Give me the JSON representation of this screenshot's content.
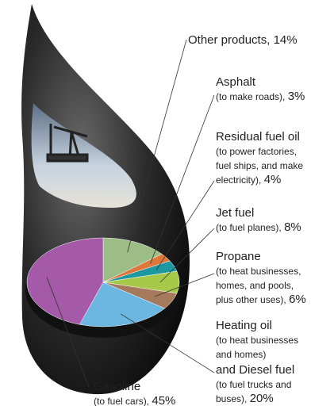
{
  "chart_data": {
    "type": "pie",
    "categories": [
      [
        "Other products,"
      ],
      [
        "Asphalt",
        "(to make roads),"
      ],
      [
        "Residual fuel oil",
        "(to power factories,",
        "fuel ships, and make",
        "electricity),"
      ],
      [
        "Jet fuel",
        "(to fuel planes),"
      ],
      [
        "Propane",
        "(to heat businesses,",
        "homes, and pools,",
        "plus other uses),"
      ],
      [
        "Heating oil",
        "(to heat businesses",
        "and homes)",
        "and Diesel fuel",
        "(to fuel trucks and",
        "buses),"
      ],
      [
        "Gasoline",
        "(to fuel cars),"
      ]
    ],
    "values": [
      14,
      3,
      4,
      8,
      6,
      20,
      45
    ],
    "value_labels": [
      "14%",
      "3%",
      "4%",
      "8%",
      "6%",
      "20%",
      "45%"
    ],
    "colors": [
      "#9dbd86",
      "#e0773a",
      "#1e98a0",
      "#a6c94a",
      "#a57a5c",
      "#6cb7e2",
      "#a45aa8"
    ]
  }
}
